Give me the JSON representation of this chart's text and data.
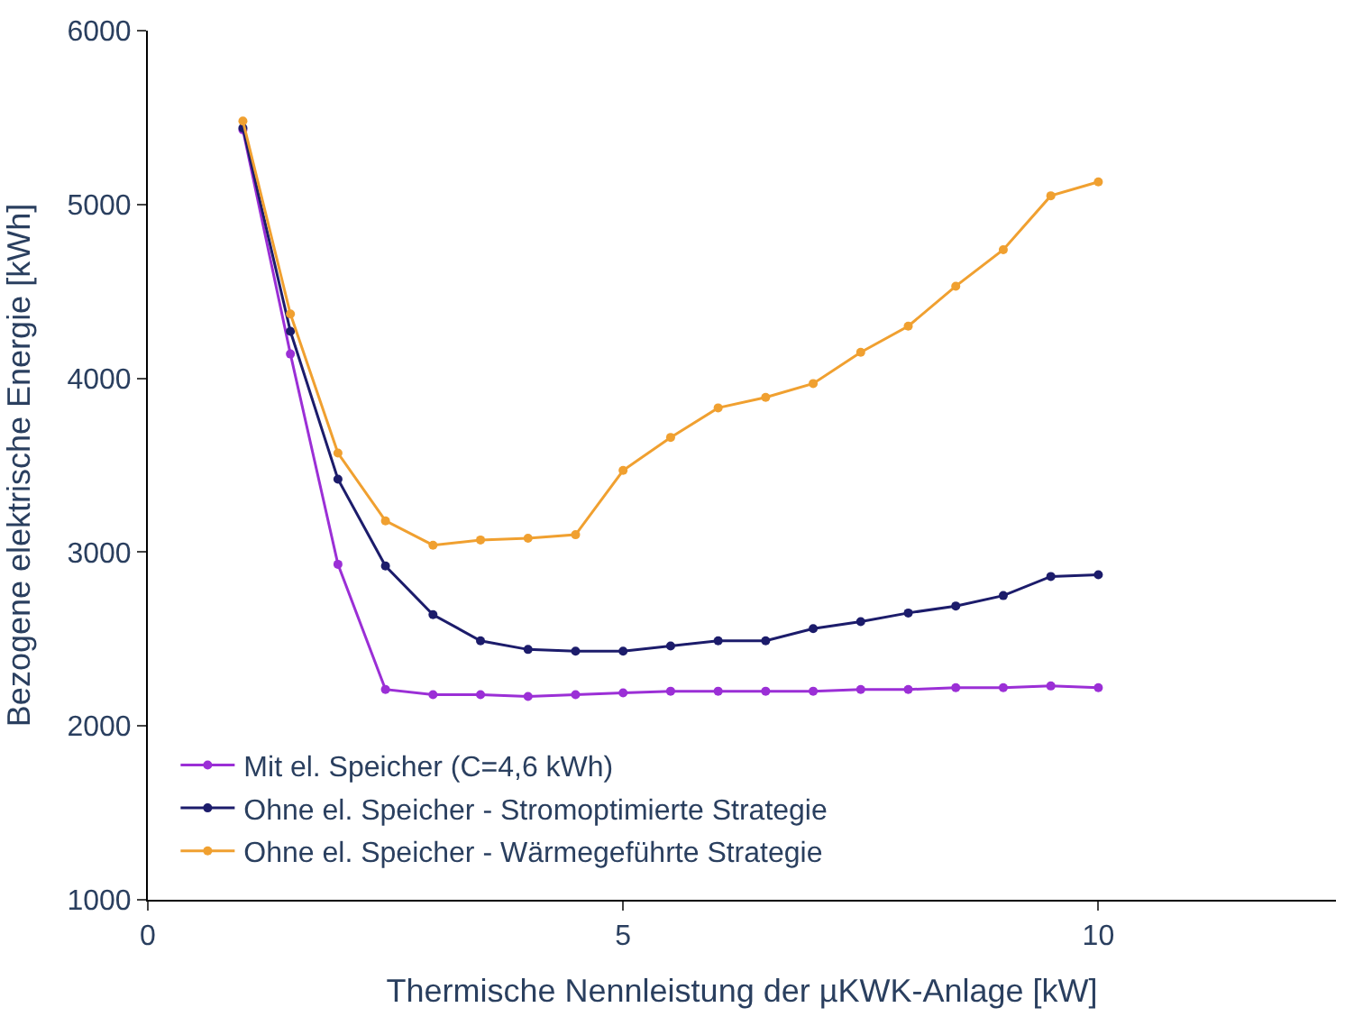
{
  "chart_data": {
    "type": "line",
    "xlabel": "Thermische Nennleistung der µKWK-Anlage [kW]",
    "ylabel": "Bezogene elektrische Energie [kWh]",
    "x": [
      1,
      1.5,
      2,
      2.5,
      3,
      3.5,
      4,
      4.5,
      5,
      5.5,
      6,
      6.5,
      7,
      7.5,
      8,
      8.5,
      9,
      9.5,
      10
    ],
    "series": [
      {
        "name": "Mit el. Speicher (C=4,6 kWh)",
        "color": "#9b2fd6",
        "values": [
          5430,
          4140,
          2930,
          2210,
          2180,
          2180,
          2170,
          2180,
          2190,
          2200,
          2200,
          2200,
          2200,
          2210,
          2210,
          2220,
          2220,
          2230,
          2220
        ]
      },
      {
        "name": "Ohne el. Speicher - Stromoptimierte Strategie",
        "color": "#1c1c6b",
        "values": [
          5440,
          4270,
          3420,
          2920,
          2640,
          2490,
          2440,
          2430,
          2430,
          2460,
          2490,
          2490,
          2560,
          2600,
          2650,
          2690,
          2750,
          2860,
          2870
        ]
      },
      {
        "name": "Ohne el. Speicher - Wärmegeführte Strategie",
        "color": "#f0a030",
        "values": [
          5480,
          4370,
          3570,
          3180,
          3040,
          3070,
          3080,
          3100,
          3470,
          3660,
          3830,
          3890,
          3970,
          4150,
          4300,
          4530,
          4740,
          5050,
          5130
        ]
      }
    ],
    "xlim": [
      0,
      12.5
    ],
    "xticks": [
      0,
      5,
      10
    ],
    "ylim": [
      1000,
      6000
    ],
    "yticks": [
      1000,
      2000,
      3000,
      4000,
      5000,
      6000
    ],
    "legend": "bottom left",
    "marker": "circle",
    "line_style": "solid"
  }
}
